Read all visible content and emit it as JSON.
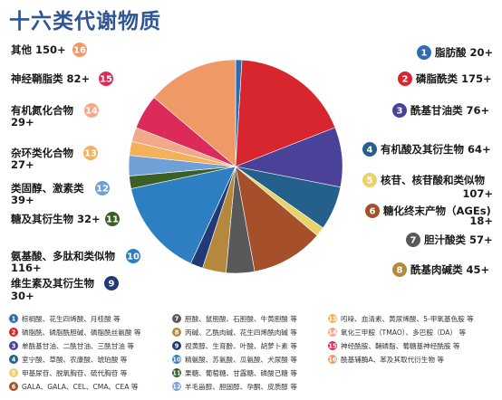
{
  "page_title": "十六类代谢物质",
  "chart_data": {
    "type": "pie",
    "title": "十六类代谢物质",
    "categories": [
      {
        "id": 1,
        "name": "脂肪酸",
        "count": 20,
        "display": "20+",
        "color": "#2f6db0"
      },
      {
        "id": 2,
        "name": "磷脂酰类",
        "count": 175,
        "display": "175+",
        "color": "#d7262e"
      },
      {
        "id": 3,
        "name": "酰基甘油类",
        "count": 76,
        "display": "76+",
        "color": "#4a4299"
      },
      {
        "id": 4,
        "name": "有机酸及其衍生物",
        "count": 64,
        "display": "64+",
        "color": "#255f8c"
      },
      {
        "id": 5,
        "name": "核苷、核苷酸和类似物",
        "count": 107,
        "display": "107+",
        "color": "#e7d36a"
      },
      {
        "id": 6,
        "name": "糖化终末产物（AGEs)",
        "count": 18,
        "display": "18+",
        "color": "#a5502a"
      },
      {
        "id": 7,
        "name": "胆汁酸类",
        "count": 57,
        "display": "57+",
        "color": "#595959"
      },
      {
        "id": 8,
        "name": "酰基肉碱类",
        "count": 45,
        "display": "45+",
        "color": "#b5893d"
      },
      {
        "id": 9,
        "name": "维生素及其衍生物",
        "count": 30,
        "display": "30+",
        "color": "#213a75"
      },
      {
        "id": 10,
        "name": "氨基酸、多肽和类似物",
        "count": 116,
        "display": "116+",
        "color": "#2e7fc1"
      },
      {
        "id": 11,
        "name": "糖及其衍生物",
        "count": 32,
        "display": "32+",
        "color": "#3c5e27"
      },
      {
        "id": 12,
        "name": "类固醇、激素类",
        "count": 39,
        "display": "39+",
        "color": "#6fa1d6"
      },
      {
        "id": 13,
        "name": "杂环类化合物",
        "count": 27,
        "display": "27+",
        "color": "#f2b15a"
      },
      {
        "id": 14,
        "name": "有机氮化合物",
        "count": 29,
        "display": "29+",
        "color": "#f2a98a"
      },
      {
        "id": 15,
        "name": "神经鞘脂类",
        "count": 82,
        "display": "82+",
        "color": "#dc2b5a"
      },
      {
        "id": 16,
        "name": "其他",
        "count": 150,
        "display": "150+",
        "color": "#ef9a66"
      }
    ],
    "slice_order": [
      1,
      2,
      3,
      4,
      5,
      6,
      7,
      8,
      9,
      10,
      11,
      12,
      13,
      14,
      15,
      16
    ],
    "slice_sizes": [
      4,
      76,
      38,
      28,
      6,
      46,
      18,
      15,
      8,
      62,
      8,
      13,
      9,
      9,
      22,
      58
    ]
  },
  "legend": [
    {
      "id": 1,
      "text": "棕榈酸、花生四烯酸、月桂酸 等"
    },
    {
      "id": 2,
      "text": "磷脂酰、磷脂酰胆碱、磷脂酰丝氨酸 等"
    },
    {
      "id": 3,
      "text": "单酰基甘油、二酰甘油、三酰甘油 等"
    },
    {
      "id": 4,
      "text": "室宁酸、草酸、农康酸、琥珀酸 等"
    },
    {
      "id": 5,
      "text": "甲基尿苷、脱氧胸苷、硫代胸苷 等"
    },
    {
      "id": 6,
      "text": "GALA、GALA、CEL、CMA、CEA 等"
    },
    {
      "id": 7,
      "text": "胆酸、鼠胆酸、石胆酸、牛黄胆酸 等"
    },
    {
      "id": 8,
      "text": "丙碱、乙酰肉碱、花生四烯酰肉碱 等"
    },
    {
      "id": 9,
      "text": "视黄醇、生育酚、叶酸、胡萝卜素 等"
    },
    {
      "id": 10,
      "text": "精氨酸、苏氨酸、瓜氨酸、犬尿酸 等"
    },
    {
      "id": 11,
      "text": "果糖、葡萄糖、甘露糖、磷酸己糖 等"
    },
    {
      "id": 12,
      "text": "羊毛甾醇、胆固醇、孕酮、皮质醇 等"
    },
    {
      "id": 13,
      "text": "吲哚、血清素、黄尿烯酸、5-甲氧基色胺 等"
    },
    {
      "id": 14,
      "text": "氧化三甲胺（TMAO）、多巴胺（DA） 等"
    },
    {
      "id": 15,
      "text": "神经酰胺、鞘磷脂、葡糖基神经酰胺 等"
    },
    {
      "id": 16,
      "text": "酰基辅酶A、苯及其取代衍生物 等"
    }
  ]
}
